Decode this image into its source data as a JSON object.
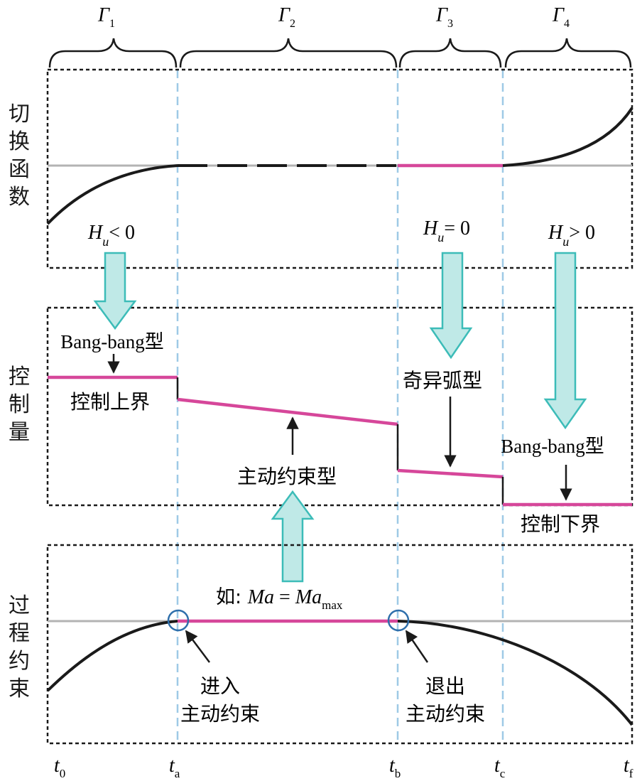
{
  "phases": [
    {
      "symbol": "Γ",
      "sub": "1"
    },
    {
      "symbol": "Γ",
      "sub": "2"
    },
    {
      "symbol": "Γ",
      "sub": "3"
    },
    {
      "symbol": "Γ",
      "sub": "4"
    }
  ],
  "panels": {
    "switching": {
      "label_chars": [
        "切",
        "换",
        "函",
        "数"
      ]
    },
    "control": {
      "label_chars": [
        "控",
        "制",
        "量"
      ]
    },
    "constraint": {
      "label_chars": [
        "过",
        "程",
        "约",
        "束"
      ]
    }
  },
  "conditions": [
    {
      "h": "H",
      "u": "u",
      "rel": "< 0"
    },
    {
      "h": "H",
      "u": "u",
      "rel": "= 0"
    },
    {
      "h": "H",
      "u": "u",
      "rel": "> 0"
    }
  ],
  "control_types": {
    "bang_bang_top": "Bang-bang型",
    "upper_bound": "控制上界",
    "active_constraint": "主动约束型",
    "singular_arc": "奇异弧型",
    "bang_bang_bottom": "Bang-bang型",
    "lower_bound": "控制下界"
  },
  "example": {
    "prefix": "如: ",
    "lhs": "Ma",
    "eq": " = ",
    "rhs": "Ma",
    "rhs_sub": "max"
  },
  "constraint_events": {
    "enter_line1": "进入",
    "enter_line2": "主动约束",
    "exit_line1": "退出",
    "exit_line2": "主动约束"
  },
  "time_ticks": [
    {
      "t": "t",
      "sub": "0"
    },
    {
      "t": "t",
      "sub": "a"
    },
    {
      "t": "t",
      "sub": "b"
    },
    {
      "t": "t",
      "sub": "c"
    },
    {
      "t": "t",
      "sub": "f"
    }
  ],
  "colors": {
    "active_segment": "#d6479a",
    "curve": "#1a1a1a",
    "reference_line": "#b3b3b3",
    "divider": "#9ec9e6",
    "arrow_fill": "#bfe9e7",
    "arrow_stroke": "#3cbcb8",
    "circle": "#2f6fab"
  }
}
